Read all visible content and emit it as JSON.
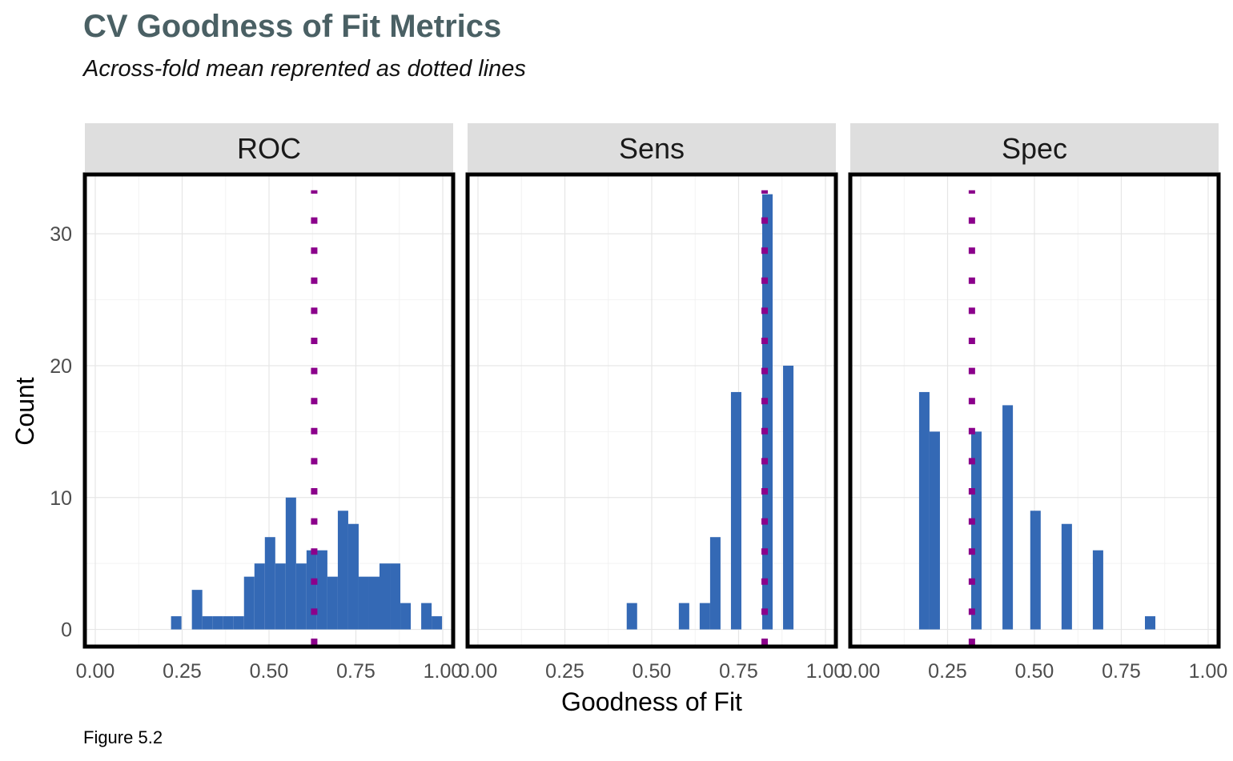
{
  "figure": {
    "title": "CV Goodness of Fit Metrics",
    "subtitle": "Across-fold mean reprented as dotted lines",
    "caption": "Figure 5.2"
  },
  "chart_data": {
    "type": "bar",
    "subtype": "faceted histogram",
    "xlabel": "Goodness of Fit",
    "ylabel": "Count",
    "xlim": [
      -0.03,
      1.03
    ],
    "ylim": [
      -1.3,
      34.5
    ],
    "x_ticks": [
      0,
      0.25,
      0.5,
      0.75,
      1.0
    ],
    "x_tick_labels": [
      "0.00",
      "0.25",
      "0.50",
      "0.75",
      "1.00"
    ],
    "y_ticks": [
      0,
      10,
      20,
      30
    ],
    "y_tick_labels": [
      "0",
      "10",
      "20",
      "30"
    ],
    "bin_width": 0.03,
    "bar_color": "#3469b5",
    "mean_line_color": "#8b008b",
    "grid": true,
    "facets": [
      {
        "label": "ROC",
        "mean": 0.63,
        "bins": [
          {
            "x": 0.233,
            "count": 1
          },
          {
            "x": 0.293,
            "count": 3
          },
          {
            "x": 0.323,
            "count": 1
          },
          {
            "x": 0.353,
            "count": 1
          },
          {
            "x": 0.383,
            "count": 1
          },
          {
            "x": 0.413,
            "count": 1
          },
          {
            "x": 0.443,
            "count": 4
          },
          {
            "x": 0.473,
            "count": 5
          },
          {
            "x": 0.503,
            "count": 7
          },
          {
            "x": 0.533,
            "count": 5
          },
          {
            "x": 0.563,
            "count": 10
          },
          {
            "x": 0.593,
            "count": 5
          },
          {
            "x": 0.623,
            "count": 6
          },
          {
            "x": 0.653,
            "count": 6
          },
          {
            "x": 0.683,
            "count": 4
          },
          {
            "x": 0.713,
            "count": 9
          },
          {
            "x": 0.743,
            "count": 8
          },
          {
            "x": 0.773,
            "count": 4
          },
          {
            "x": 0.803,
            "count": 4
          },
          {
            "x": 0.833,
            "count": 5
          },
          {
            "x": 0.863,
            "count": 5
          },
          {
            "x": 0.893,
            "count": 2
          },
          {
            "x": 0.953,
            "count": 2
          },
          {
            "x": 0.983,
            "count": 1
          }
        ]
      },
      {
        "label": "Sens",
        "mean": 0.825,
        "bins": [
          {
            "x": 0.443,
            "count": 2
          },
          {
            "x": 0.593,
            "count": 2
          },
          {
            "x": 0.653,
            "count": 2
          },
          {
            "x": 0.683,
            "count": 7
          },
          {
            "x": 0.743,
            "count": 18
          },
          {
            "x": 0.833,
            "count": 33
          },
          {
            "x": 0.893,
            "count": 20
          }
        ]
      },
      {
        "label": "Spec",
        "mean": 0.32,
        "bins": [
          {
            "x": 0.183,
            "count": 18
          },
          {
            "x": 0.213,
            "count": 15
          },
          {
            "x": 0.333,
            "count": 15
          },
          {
            "x": 0.423,
            "count": 17
          },
          {
            "x": 0.503,
            "count": 9
          },
          {
            "x": 0.593,
            "count": 8
          },
          {
            "x": 0.683,
            "count": 6
          },
          {
            "x": 0.833,
            "count": 1
          }
        ]
      }
    ]
  }
}
